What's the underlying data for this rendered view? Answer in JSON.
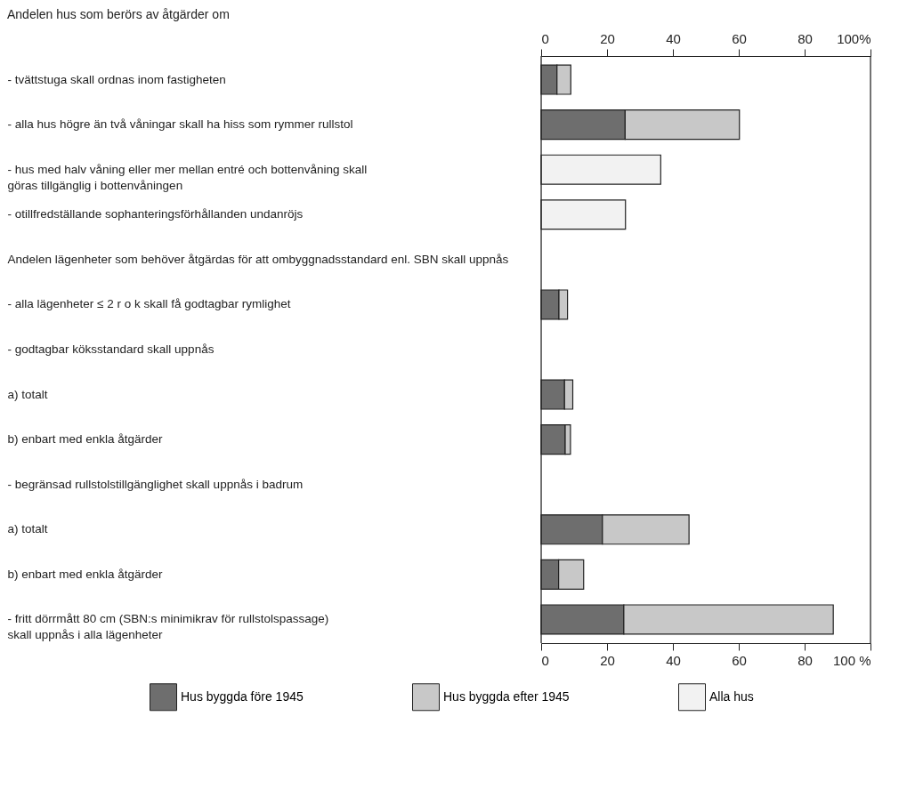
{
  "chart_data": {
    "type": "bar",
    "orientation": "horizontal",
    "stacked": true,
    "title": "Andelen hus som berörs av åtgärder om",
    "categories": [
      "- tvättstuga skall ordnas inom fastigheten",
      "- alla hus högre än två våningar skall ha hiss som rymmer rullstol",
      "- hus med halv våning eller mer mellan entré och bottenvåning skall\ngöras tillgänglig i bottenvåningen",
      "- otillfredställande sophanteringsförhållanden undanröjs",
      "Andelen lägenheter som behöver åtgärdas för att ombyggnadsstandard enl. SBN skall uppnås",
      "- alla lägenheter ≤ 2 r o k skall få godtagbar rymlighet",
      "- godtagbar köksstandard skall uppnås",
      "a) totalt",
      "b) enbart med enkla åtgärder",
      "- begränsad rullstolstillgänglighet skall uppnås i badrum",
      "a) totalt",
      "b) enbart med enkla åtgärder",
      "- fritt dörrmått 80 cm (SBN:s minimikrav för rullstolspassage)\nskall uppnås i alla lägenheter"
    ],
    "series": [
      {
        "name": "Hus byggda före 1945",
        "color": "#6e6e6e",
        "values": [
          4.8,
          25.5,
          null,
          null,
          null,
          5.4,
          null,
          7.1,
          7.3,
          null,
          18.6,
          5.3,
          25.1
        ]
      },
      {
        "name": "Hus byggda efter 1945",
        "color": "#c8c8c8",
        "values": [
          4.2,
          34.7,
          null,
          null,
          null,
          2.6,
          null,
          2.5,
          1.6,
          null,
          26.3,
          7.6,
          63.6
        ]
      },
      {
        "name": "Alla hus",
        "color": "#f2f2f2",
        "values": [
          null,
          null,
          36.3,
          25.6,
          null,
          null,
          null,
          null,
          null,
          null,
          null,
          null,
          null
        ]
      }
    ],
    "xlim": [
      0,
      100
    ],
    "xticks": [
      0,
      20,
      40,
      60,
      80,
      {
        "value": 100,
        "label": "100 %"
      }
    ],
    "x2lim": [
      0,
      100
    ],
    "x2ticks": [
      0,
      20,
      40,
      60,
      80,
      {
        "value": 100,
        "label": "100%"
      }
    ],
    "legend": "bottom"
  }
}
